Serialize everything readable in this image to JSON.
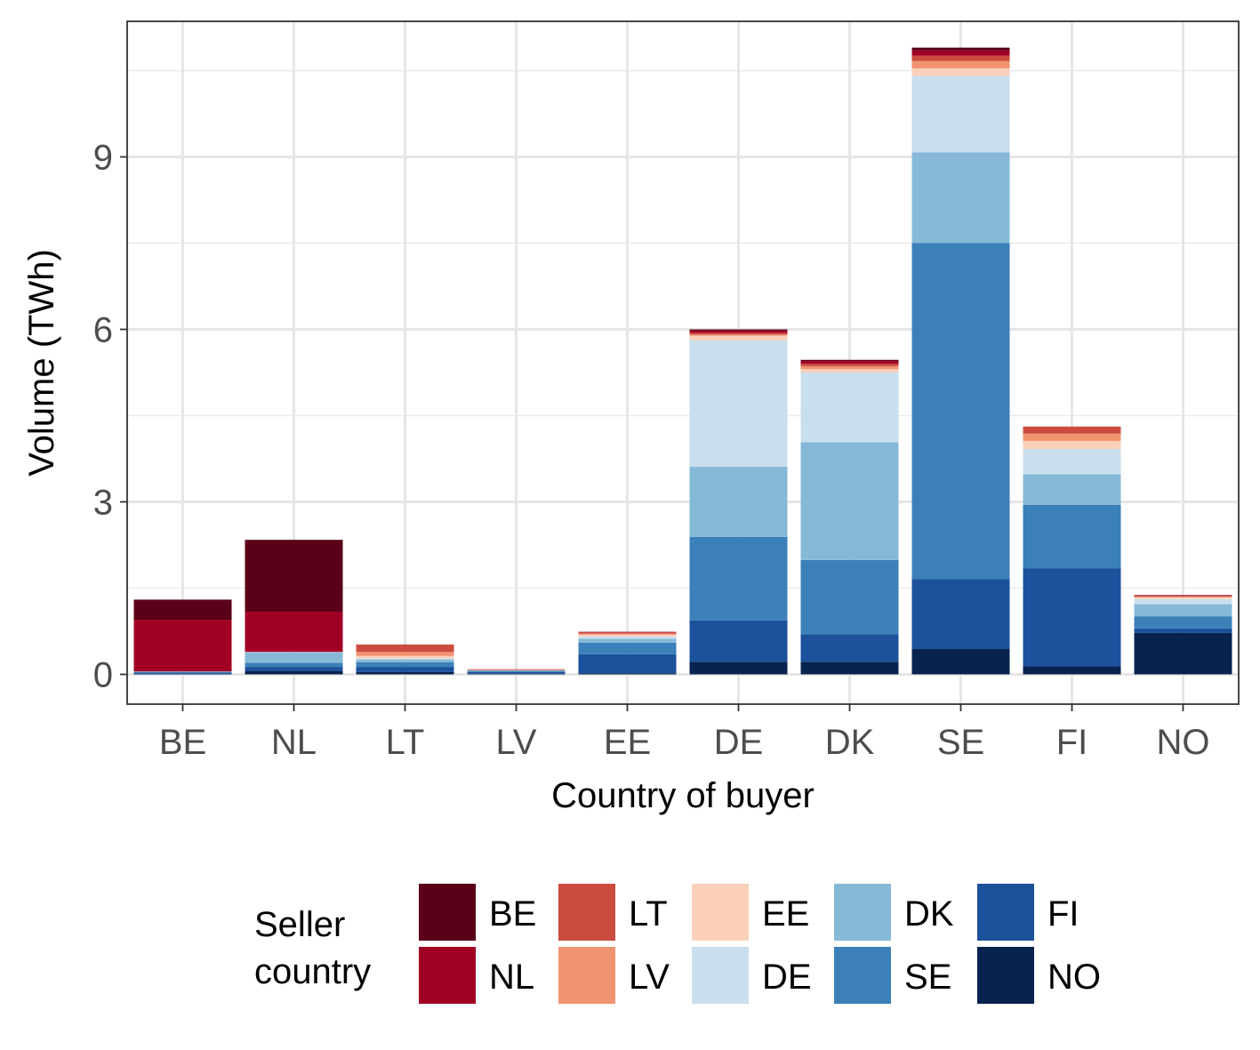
{
  "chart_data": {
    "type": "bar",
    "stacked": true,
    "title": "",
    "xlabel": "Country of buyer",
    "ylabel": "Volume (TWh)",
    "ylim": [
      -0.5,
      11.3
    ],
    "yticks": [
      0,
      3,
      6,
      9
    ],
    "grid": true,
    "legend_position": "bottom",
    "legend_title": "Seller country",
    "categories": [
      "BE",
      "NL",
      "LT",
      "LV",
      "EE",
      "DE",
      "DK",
      "SE",
      "FI",
      "NO"
    ],
    "series": [
      {
        "name": "NO",
        "color": "#08234f",
        "values": [
          0.01,
          0.06,
          0.04,
          0.01,
          0.02,
          0.22,
          0.22,
          0.44,
          0.14,
          0.72
        ]
      },
      {
        "name": "FI",
        "color": "#1c519c",
        "values": [
          0.02,
          0.07,
          0.09,
          0.03,
          0.33,
          0.72,
          0.48,
          1.22,
          1.7,
          0.08
        ]
      },
      {
        "name": "SE",
        "color": "#3b80b8",
        "values": [
          0.01,
          0.07,
          0.08,
          0.02,
          0.2,
          1.45,
          1.29,
          5.84,
          1.11,
          0.21
        ]
      },
      {
        "name": "DK",
        "color": "#86b9d8",
        "values": [
          0.01,
          0.18,
          0.05,
          0.01,
          0.07,
          1.22,
          2.05,
          1.58,
          0.53,
          0.21
        ]
      },
      {
        "name": "DE",
        "color": "#c9dfed",
        "values": [
          0.0,
          0.01,
          0.02,
          0.0,
          0.04,
          2.2,
          1.21,
          1.33,
          0.44,
          0.09
        ]
      },
      {
        "name": "EE",
        "color": "#fbd0b9",
        "values": [
          0.0,
          0.0,
          0.04,
          0.0,
          0.03,
          0.08,
          0.06,
          0.13,
          0.14,
          0.03
        ]
      },
      {
        "name": "LV",
        "color": "#f09370",
        "values": [
          0.0,
          0.0,
          0.07,
          0.01,
          0.02,
          0.02,
          0.05,
          0.13,
          0.13,
          0.01
        ]
      },
      {
        "name": "LT",
        "color": "#cc4c3f",
        "values": [
          0.0,
          0.0,
          0.13,
          0.01,
          0.02,
          0.03,
          0.04,
          0.09,
          0.12,
          0.02
        ]
      },
      {
        "name": "NL",
        "color": "#a10025",
        "values": [
          0.9,
          0.7,
          0.0,
          0.0,
          0.01,
          0.04,
          0.05,
          0.09,
          0.0,
          0.01
        ]
      },
      {
        "name": "BE",
        "color": "#5a0018",
        "values": [
          0.35,
          1.25,
          0.0,
          0.0,
          0.0,
          0.02,
          0.02,
          0.05,
          0.0,
          0.0
        ]
      }
    ],
    "legend_order": [
      "BE",
      "NL",
      "LT",
      "LV",
      "EE",
      "DE",
      "DK",
      "SE",
      "FI",
      "NO"
    ]
  }
}
